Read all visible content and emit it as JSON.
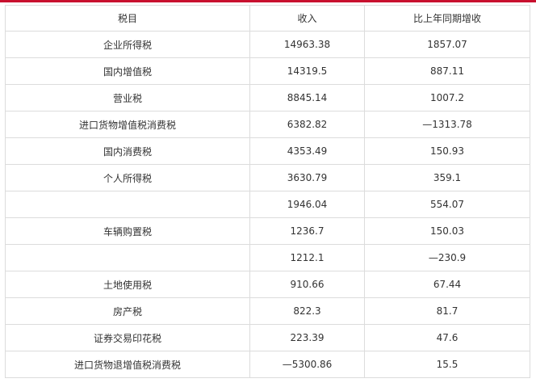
{
  "accent_color": "#c8102e",
  "table": {
    "headers": [
      "税目",
      "收入",
      "比上年同期增收"
    ],
    "rows": [
      [
        "企业所得税",
        "14963.38",
        "1857.07"
      ],
      [
        "国内增值税",
        "14319.5",
        "887.11"
      ],
      [
        "营业税",
        "8845.14",
        "1007.2"
      ],
      [
        "进口货物增值税消费税",
        "6382.82",
        "—1313.78"
      ],
      [
        "国内消费税",
        "4353.49",
        "150.93"
      ],
      [
        "个人所得税",
        "3630.79",
        "359.1"
      ],
      [
        "",
        "1946.04",
        "554.07"
      ],
      [
        "车辆购置税",
        "1236.7",
        "150.03"
      ],
      [
        "",
        "1212.1",
        "—230.9"
      ],
      [
        "土地使用税",
        "910.66",
        "67.44"
      ],
      [
        "房产税",
        "822.3",
        "81.7"
      ],
      [
        "证券交易印花税",
        "223.39",
        "47.6"
      ],
      [
        "进口货物退增值税消费税",
        "—5300.86",
        "15.5"
      ]
    ]
  }
}
